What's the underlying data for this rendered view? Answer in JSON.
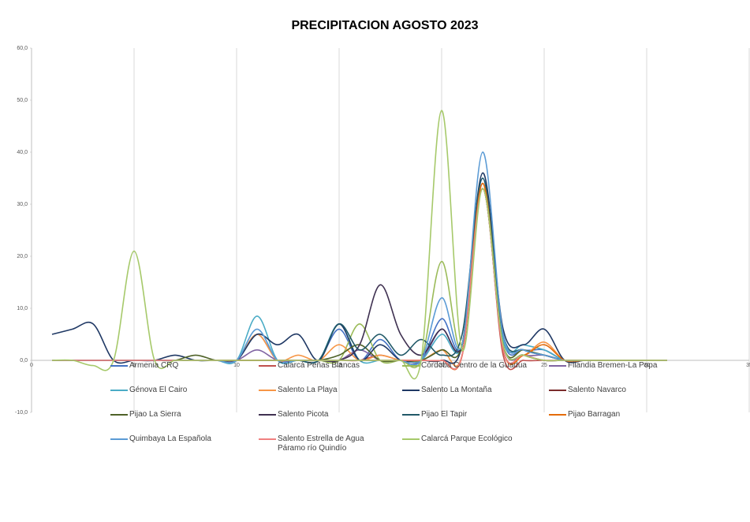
{
  "chart_data": {
    "type": "line",
    "title": "PRECIPITACION AGOSTO 2023",
    "x": [
      1,
      2,
      3,
      4,
      5,
      6,
      7,
      8,
      9,
      10,
      11,
      12,
      13,
      14,
      15,
      16,
      17,
      18,
      19,
      20,
      21,
      22,
      23,
      24,
      25,
      26,
      27,
      28,
      29,
      30,
      31
    ],
    "xlim": [
      0,
      35
    ],
    "xticks": [
      0,
      5,
      10,
      15,
      20,
      25,
      30,
      35
    ],
    "ylim": [
      -10,
      60
    ],
    "yticks": [
      {
        "value": -10,
        "label": "-10,0"
      },
      {
        "value": 0,
        "label": "0,0"
      },
      {
        "value": 10,
        "label": "10,0"
      },
      {
        "value": 20,
        "label": "20,0"
      },
      {
        "value": 30,
        "label": "30,0"
      },
      {
        "value": 40,
        "label": "40,0"
      },
      {
        "value": 50,
        "label": "50,0"
      },
      {
        "value": 60,
        "label": "60,0"
      }
    ],
    "grid": true,
    "legend": "bottom",
    "smooth": true,
    "series": [
      {
        "name": "Armenia CRQ",
        "color": "#4472c4",
        "values": [
          0,
          0,
          0,
          0,
          0,
          0,
          0,
          0,
          0,
          0,
          5,
          0,
          0,
          0,
          6,
          0,
          4,
          0,
          0,
          8,
          3,
          35,
          4,
          2,
          2,
          0,
          0,
          0,
          0,
          0,
          0
        ]
      },
      {
        "name": "Calarcá Peñas Blancas",
        "color": "#c0504d",
        "values": [
          0,
          0,
          0,
          0,
          0,
          0,
          0,
          0,
          0,
          0,
          0,
          0,
          0,
          0,
          0,
          0,
          1,
          0,
          0,
          0,
          1,
          34,
          1,
          0,
          0,
          0,
          0,
          0,
          0,
          0,
          0
        ]
      },
      {
        "name": "Córdoba Centro de la Guadua",
        "color": "#9bbb59",
        "values": [
          0,
          0,
          0,
          0,
          0,
          0,
          0,
          0,
          0,
          0,
          0,
          0,
          0,
          0,
          0,
          7,
          0,
          0,
          0,
          19,
          2,
          33,
          3,
          2,
          1,
          0,
          0,
          0,
          0,
          0,
          0
        ]
      },
      {
        "name": "Filandia Bremen-La Popa",
        "color": "#8064a2",
        "values": [
          0,
          0,
          0,
          0,
          0,
          0,
          0,
          0,
          0,
          0,
          2,
          0,
          0,
          0,
          0,
          2,
          0,
          0,
          0,
          6,
          3,
          34,
          3,
          1,
          1,
          0,
          0,
          0,
          0,
          0,
          0
        ]
      },
      {
        "name": "Génova El Cairo",
        "color": "#4bacc6",
        "values": [
          0,
          0,
          0,
          0,
          0,
          0,
          0,
          0,
          0,
          0,
          8.5,
          0,
          0,
          0,
          7,
          0,
          0,
          0,
          0,
          5,
          3,
          34,
          4,
          3,
          2,
          0,
          0,
          0,
          0,
          0,
          0
        ]
      },
      {
        "name": "Salento La Playa",
        "color": "#f79646",
        "values": [
          0,
          0,
          0,
          0,
          0,
          0,
          0,
          0,
          0,
          0,
          5,
          0,
          1,
          0,
          3,
          0,
          1,
          0,
          0,
          2,
          1,
          34,
          2,
          1,
          3.5,
          0,
          0,
          0,
          0,
          0,
          0
        ]
      },
      {
        "name": "Salento La Montaña",
        "color": "#1f3864",
        "values": [
          5,
          6,
          7,
          0,
          0,
          0,
          1,
          0,
          0,
          0,
          5,
          3,
          5,
          0,
          7,
          0,
          3,
          0,
          0,
          0,
          3,
          36,
          6,
          3,
          6,
          0,
          0,
          0,
          0,
          0,
          0
        ]
      },
      {
        "name": "Salento Navarco",
        "color": "#7b2c2c",
        "values": [
          0,
          0,
          0,
          0,
          0,
          0,
          0,
          0,
          0,
          0,
          0,
          0,
          0,
          0,
          0,
          0,
          0,
          0,
          0,
          0,
          1,
          33,
          2,
          1,
          0,
          0,
          0,
          0,
          0,
          0,
          0
        ]
      },
      {
        "name": "Pijao La Sierra",
        "color": "#4f6228",
        "values": [
          0,
          0,
          0,
          0,
          0,
          0,
          0,
          1,
          0,
          0,
          0,
          0,
          0,
          0,
          1,
          3,
          0,
          0,
          0,
          2,
          3,
          33,
          3,
          2,
          1,
          0,
          0,
          0,
          0,
          0,
          0
        ]
      },
      {
        "name": "Salento Picota",
        "color": "#3f3151",
        "values": [
          0,
          0,
          0,
          0,
          0,
          0,
          0,
          0,
          0,
          0,
          0,
          0,
          0,
          0,
          0,
          3,
          14.5,
          5,
          1,
          6,
          3,
          33,
          3,
          1,
          0,
          0,
          0,
          0,
          0,
          0,
          0
        ]
      },
      {
        "name": "Pijao El Tapir",
        "color": "#215968",
        "values": [
          0,
          0,
          0,
          0,
          0,
          0,
          0,
          0,
          0,
          0,
          0,
          0,
          0,
          0,
          7,
          2,
          5,
          1,
          4,
          1,
          5,
          35,
          5,
          2,
          1,
          0,
          0,
          0,
          0,
          0,
          0
        ]
      },
      {
        "name": "Pijao Barragan",
        "color": "#e46c0a",
        "values": [
          0,
          0,
          0,
          0,
          0,
          0,
          0,
          0,
          0,
          0,
          0,
          0,
          0,
          0,
          0,
          0,
          0,
          0,
          0,
          0,
          1,
          34,
          2,
          1,
          3,
          0,
          0,
          0,
          0,
          0,
          0
        ]
      },
      {
        "name": "Quimbaya La Española",
        "color": "#5b9bd5",
        "values": [
          0,
          0,
          0,
          0,
          0,
          0,
          0,
          0,
          0,
          0,
          6,
          0,
          0,
          0,
          0,
          0,
          0,
          0,
          0,
          12,
          3,
          40,
          5,
          2,
          1,
          0,
          0,
          0,
          0,
          0,
          0
        ]
      },
      {
        "name": "Salento Estrella de Agua Páramo río Quindío",
        "color": "#f08080",
        "values": [
          0,
          0,
          0,
          0,
          0,
          0,
          0,
          0,
          0,
          0,
          0,
          0,
          0,
          0,
          0,
          0,
          0,
          0,
          0,
          0,
          1,
          33,
          2,
          1,
          0,
          0,
          0,
          0,
          0,
          0,
          0
        ]
      },
      {
        "name": "Calarcá Parque Ecológico",
        "color": "#a6c96a",
        "values": [
          0,
          0,
          -1,
          0,
          21,
          0,
          0,
          0,
          0,
          0,
          0,
          0,
          0,
          0,
          0,
          0,
          0,
          0,
          0,
          48,
          2,
          33,
          3,
          1,
          0,
          0,
          0,
          0,
          0,
          0,
          0
        ]
      }
    ]
  }
}
